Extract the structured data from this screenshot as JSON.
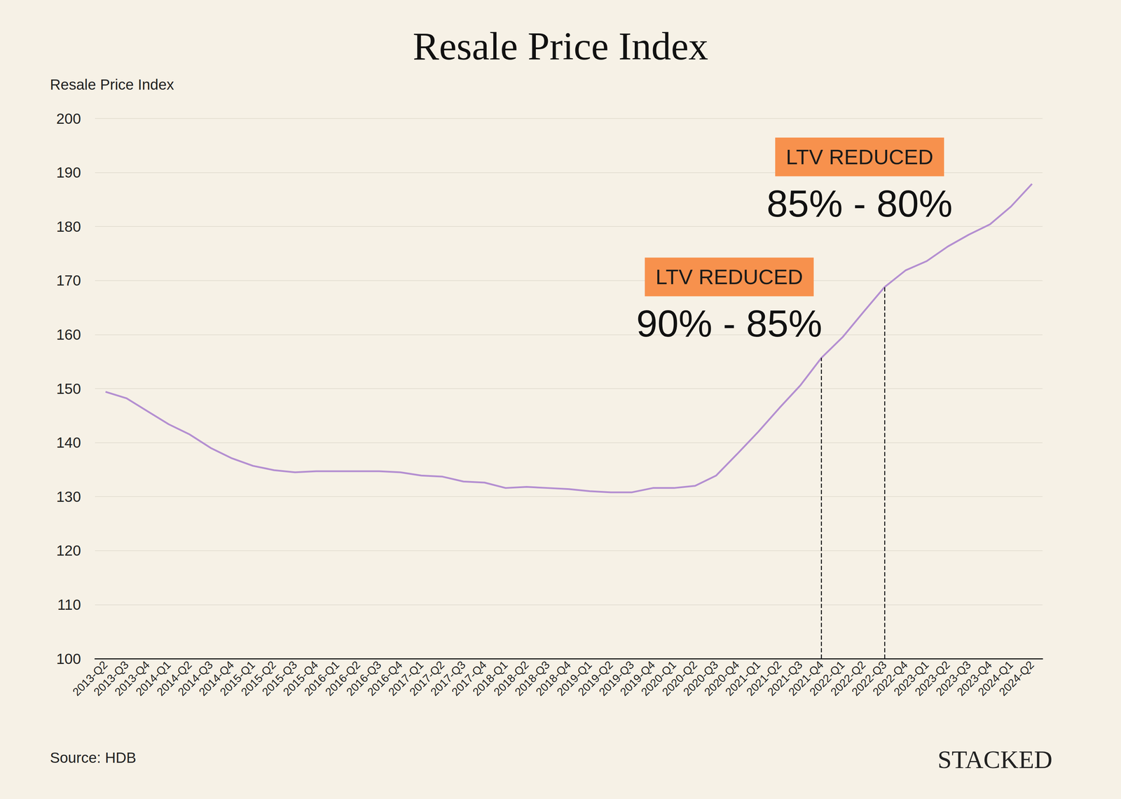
{
  "chart_data": {
    "type": "line",
    "title": "Resale Price Index",
    "y_label": "Resale Price Index",
    "categories": [
      "2013-Q2",
      "2013-Q3",
      "2013-Q4",
      "2014-Q1",
      "2014-Q2",
      "2014-Q3",
      "2014-Q4",
      "2015-Q1",
      "2015-Q2",
      "2015-Q3",
      "2015-Q4",
      "2016-Q1",
      "2016-Q2",
      "2016-Q3",
      "2016-Q4",
      "2017-Q1",
      "2017-Q2",
      "2017-Q3",
      "2017-Q4",
      "2018-Q1",
      "2018-Q2",
      "2018-Q3",
      "2018-Q4",
      "2019-Q1",
      "2019-Q2",
      "2019-Q3",
      "2019-Q4",
      "2020-Q1",
      "2020-Q2",
      "2020-Q3",
      "2020-Q4",
      "2021-Q1",
      "2021-Q2",
      "2021-Q3",
      "2021-Q4",
      "2022-Q1",
      "2022-Q2",
      "2022-Q3",
      "2022-Q4",
      "2023-Q1",
      "2023-Q2",
      "2023-Q3",
      "2023-Q4",
      "2024-Q1",
      "2024-Q2"
    ],
    "values": [
      149.4,
      148.2,
      145.8,
      143.4,
      141.5,
      139.0,
      137.1,
      135.7,
      134.9,
      134.5,
      134.7,
      134.7,
      134.7,
      134.7,
      134.5,
      133.9,
      133.7,
      132.8,
      132.6,
      131.6,
      131.8,
      131.6,
      131.4,
      131.0,
      130.8,
      130.8,
      131.6,
      131.6,
      132.0,
      133.9,
      137.9,
      142.0,
      146.4,
      150.6,
      155.7,
      159.5,
      164.2,
      168.8,
      171.9,
      173.6,
      176.3,
      178.5,
      180.4,
      183.7,
      187.9
    ],
    "color": "#B48FD1",
    "ylim": [
      100,
      200
    ],
    "yticks": [
      100,
      110,
      120,
      130,
      140,
      150,
      160,
      170,
      180,
      190,
      200
    ],
    "grid": true,
    "annotations": [
      {
        "x": "2021-Q4",
        "label": "LTV REDUCED",
        "text": "90% - 85%"
      },
      {
        "x": "2022-Q3",
        "label": "LTV REDUCED",
        "text": "85% - 80%"
      }
    ],
    "source": "Source: HDB",
    "credit": "STACKED"
  }
}
